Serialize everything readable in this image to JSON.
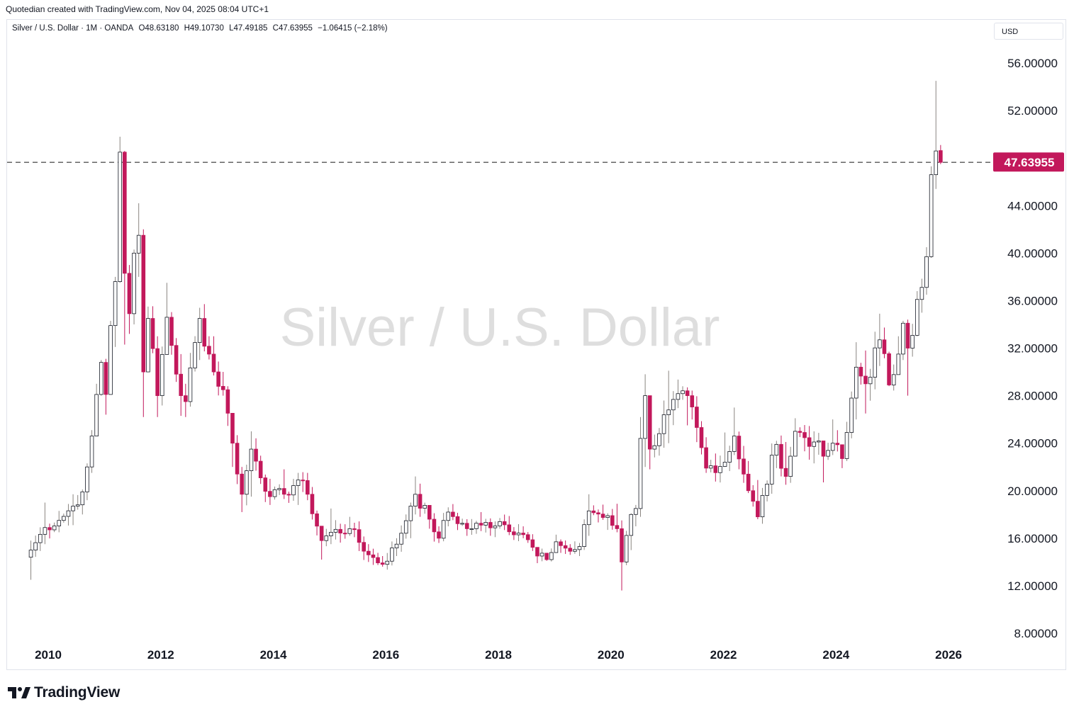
{
  "header": {
    "attribution": "Quotedian created with TradingView.com, Nov 04, 2025 08:04 UTC+1"
  },
  "legend": {
    "symbol": "Silver / U.S. Dollar · 1M · OANDA",
    "open": "O48.63180",
    "high": "H49.10730",
    "low": "L47.49185",
    "close": "C47.63955",
    "change": "−1.06415 (−2.18%)"
  },
  "currency_button": {
    "label": "USD"
  },
  "watermark": "Silver / U.S. Dollar",
  "brand": {
    "name": "TradingView"
  },
  "colors": {
    "up": "#8a8580",
    "down": "#c2185b",
    "line": "#555555"
  },
  "chart_data": {
    "type": "candlestick",
    "timeframe": "1M",
    "ylim": [
      6.5,
      59
    ],
    "y_ticks": [
      "8.00000",
      "12.00000",
      "16.00000",
      "20.00000",
      "24.00000",
      "28.00000",
      "32.00000",
      "36.00000",
      "40.00000",
      "44.00000",
      "48.00000",
      "52.00000",
      "56.00000"
    ],
    "x_ticks": [
      "2010",
      "2012",
      "2014",
      "2016",
      "2018",
      "2020",
      "2022",
      "2024",
      "2026"
    ],
    "last_price": "47.63955",
    "last_price_value": 47.63955,
    "anchors": [
      [
        "2009-09",
        15.0,
        12.5,
        15.8
      ],
      [
        "2009-12",
        16.9,
        15.5,
        19.0
      ],
      [
        "2010-03",
        17.5,
        16.5,
        18.3
      ],
      [
        "2010-06",
        18.7,
        17.1,
        19.7
      ],
      [
        "2010-08",
        19.9,
        18.0,
        20.1
      ],
      [
        "2010-09",
        22.0,
        19.2,
        22.3
      ],
      [
        "2010-10",
        24.6,
        21.5,
        25.1
      ],
      [
        "2010-11",
        28.1,
        24.6,
        29.0
      ],
      [
        "2010-12",
        30.8,
        28.0,
        31.0
      ],
      [
        "2011-01",
        28.1,
        26.4,
        31.1
      ],
      [
        "2011-02",
        33.9,
        28.2,
        34.3
      ],
      [
        "2011-03",
        37.6,
        32.1,
        38.0
      ],
      [
        "2011-04",
        48.5,
        37.5,
        49.8
      ],
      [
        "2011-05",
        38.3,
        32.3,
        48.6
      ],
      [
        "2011-06",
        34.9,
        33.2,
        39.0
      ],
      [
        "2011-07",
        40.0,
        34.0,
        40.3
      ],
      [
        "2011-08",
        41.5,
        38.0,
        44.2
      ],
      [
        "2011-09",
        30.0,
        26.2,
        42.0
      ],
      [
        "2011-10",
        34.5,
        30.0,
        35.5
      ],
      [
        "2011-12",
        28.0,
        26.2,
        33.0
      ],
      [
        "2012-02",
        34.6,
        32.0,
        37.5
      ],
      [
        "2012-05",
        28.0,
        26.3,
        31.5
      ],
      [
        "2012-06",
        27.5,
        26.2,
        29.0
      ],
      [
        "2012-09",
        34.5,
        31.0,
        35.4
      ],
      [
        "2012-12",
        30.0,
        29.7,
        33.0
      ],
      [
        "2013-02",
        28.5,
        28.0,
        30.0
      ],
      [
        "2013-04",
        24.0,
        22.0,
        25.0
      ],
      [
        "2013-06",
        19.7,
        18.2,
        22.0
      ],
      [
        "2013-08",
        23.5,
        19.5,
        25.0
      ],
      [
        "2013-12",
        19.5,
        18.8,
        21.0
      ],
      [
        "2014-03",
        19.7,
        19.3,
        21.8
      ],
      [
        "2014-06",
        20.9,
        18.8,
        21.5
      ],
      [
        "2014-08",
        19.7,
        19.2,
        21.5
      ],
      [
        "2014-11",
        15.8,
        14.2,
        17.0
      ],
      [
        "2015-01",
        16.5,
        15.5,
        18.5
      ],
      [
        "2015-05",
        16.8,
        16.2,
        17.8
      ],
      [
        "2015-09",
        14.6,
        14.0,
        15.5
      ],
      [
        "2015-12",
        13.8,
        13.6,
        14.5
      ],
      [
        "2016-03",
        15.5,
        14.5,
        16.0
      ],
      [
        "2016-06",
        18.7,
        16.0,
        19.0
      ],
      [
        "2016-07",
        19.7,
        18.0,
        21.2
      ],
      [
        "2016-10",
        17.6,
        16.8,
        18.0
      ],
      [
        "2016-12",
        16.0,
        15.6,
        17.0
      ],
      [
        "2017-02",
        18.2,
        17.0,
        18.6
      ],
      [
        "2017-06",
        16.8,
        16.2,
        17.6
      ],
      [
        "2017-09",
        17.1,
        16.6,
        18.2
      ],
      [
        "2018-01",
        17.4,
        16.8,
        17.7
      ],
      [
        "2018-06",
        16.3,
        16.0,
        17.0
      ],
      [
        "2018-09",
        14.5,
        13.9,
        15.0
      ],
      [
        "2018-11",
        14.2,
        14.1,
        14.7
      ],
      [
        "2019-01",
        15.7,
        15.3,
        16.3
      ],
      [
        "2019-04",
        14.9,
        14.6,
        15.5
      ],
      [
        "2019-06",
        15.3,
        14.5,
        15.6
      ],
      [
        "2019-08",
        18.3,
        16.2,
        19.7
      ],
      [
        "2019-12",
        17.9,
        16.7,
        18.1
      ],
      [
        "2020-02",
        16.8,
        16.5,
        18.9
      ],
      [
        "2020-03",
        14.0,
        11.6,
        17.5
      ],
      [
        "2020-05",
        18.0,
        15.0,
        18.1
      ],
      [
        "2020-06",
        18.5,
        17.0,
        18.8
      ],
      [
        "2020-07",
        24.4,
        17.8,
        26.2
      ],
      [
        "2020-08",
        28.0,
        22.0,
        29.8
      ],
      [
        "2020-09",
        23.5,
        21.8,
        28.0
      ],
      [
        "2021-01",
        26.8,
        24.0,
        30.1
      ],
      [
        "2021-05",
        28.0,
        25.5,
        28.7
      ],
      [
        "2021-09",
        21.9,
        21.5,
        24.5
      ],
      [
        "2022-01",
        22.4,
        22.0,
        24.9
      ],
      [
        "2022-03",
        24.6,
        23.0,
        27.0
      ],
      [
        "2022-06",
        20.0,
        19.8,
        22.5
      ],
      [
        "2022-08",
        17.8,
        17.6,
        20.9
      ],
      [
        "2022-12",
        23.9,
        21.9,
        24.2
      ],
      [
        "2023-02",
        21.2,
        20.5,
        24.1
      ],
      [
        "2023-04",
        25.0,
        23.8,
        26.1
      ],
      [
        "2023-08",
        24.1,
        22.3,
        25.0
      ],
      [
        "2023-10",
        22.9,
        20.7,
        23.5
      ],
      [
        "2023-12",
        24.0,
        23.0,
        26.0
      ],
      [
        "2024-02",
        22.7,
        21.9,
        23.5
      ],
      [
        "2024-03",
        24.9,
        22.5,
        25.8
      ],
      [
        "2024-05",
        30.4,
        26.0,
        32.5
      ],
      [
        "2024-07",
        29.0,
        26.5,
        31.8
      ],
      [
        "2024-10",
        32.7,
        30.5,
        34.9
      ],
      [
        "2024-12",
        28.9,
        28.8,
        31.7
      ],
      [
        "2025-02",
        31.5,
        30.5,
        33.0
      ],
      [
        "2025-03",
        34.1,
        31.0,
        34.3
      ],
      [
        "2025-04",
        32.0,
        28.0,
        34.4
      ],
      [
        "2025-06",
        36.1,
        33.0,
        36.8
      ],
      [
        "2025-08",
        39.7,
        36.5,
        40.5
      ],
      [
        "2025-09",
        46.6,
        39.6,
        47.3
      ],
      [
        "2025-10",
        48.6,
        45.4,
        54.5
      ],
      [
        "2025-11",
        47.64,
        47.49,
        49.1
      ]
    ]
  }
}
